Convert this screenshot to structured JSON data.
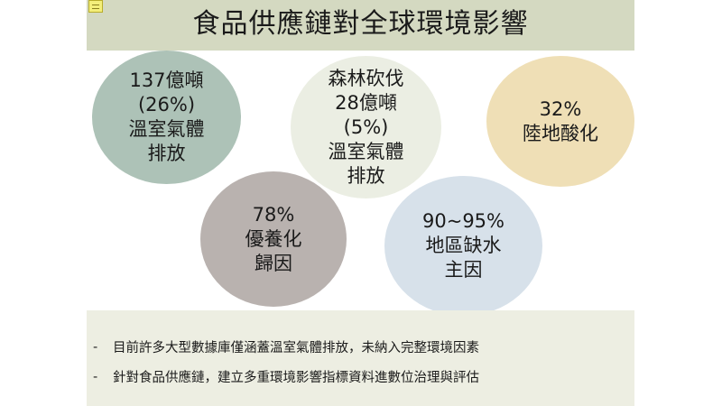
{
  "slide": {
    "title": "食品供應鏈對全球環境影響",
    "circles": [
      {
        "lines": [
          "137億噸",
          "(26%)",
          "溫室氣體",
          "排放"
        ],
        "color": "#adc2b7"
      },
      {
        "lines": [
          "森林砍伐",
          "28億噸",
          "(5%)",
          "溫室氣體",
          "排放"
        ],
        "color": "#ebeee3"
      },
      {
        "lines": [
          "32%",
          "陸地酸化"
        ],
        "color": "#efdfb6"
      },
      {
        "lines": [
          "78%",
          "優養化",
          "歸因"
        ],
        "color": "#b9b2af"
      },
      {
        "lines": [
          "90~95%",
          "地區缺水",
          "主因"
        ],
        "color": "#d7e1ea"
      }
    ],
    "bullets": [
      {
        "marker": "-",
        "text": "目前許多大型數據庫僅涵蓋溫室氣體排放，未納入完整環境因素"
      },
      {
        "marker": "-",
        "text": "針對食品供應鏈，建立多重環境影響指標資料進數位治理與評估"
      }
    ]
  },
  "colors": {
    "title_bar": "#d4d9c1",
    "bottom_box": "#edeee2",
    "note_icon": "#f3ee7a"
  }
}
